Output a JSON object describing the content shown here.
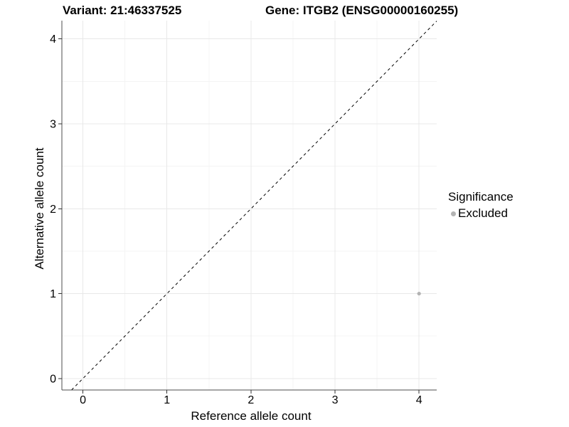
{
  "titles": {
    "variant": "Variant: 21:46337525",
    "gene": "Gene: ITGB2 (ENSG00000160255)"
  },
  "chart_data": {
    "type": "scatter",
    "xlabel": "Reference allele count",
    "ylabel": "Alternative allele count",
    "x_ticks": [
      0,
      1,
      2,
      3,
      4
    ],
    "y_ticks": [
      0,
      1,
      2,
      3,
      4
    ],
    "x_minor_ticks": [
      0.5,
      1.5,
      2.5,
      3.5
    ],
    "y_minor_ticks": [
      0.5,
      1.5,
      2.5,
      3.5
    ],
    "xlim": [
      -0.25,
      4.21
    ],
    "ylim": [
      -0.135,
      4.215
    ],
    "grid": true,
    "points": [
      {
        "x": 4,
        "y": 1,
        "series": "Excluded"
      }
    ],
    "reference_line": {
      "type": "identity",
      "slope": 1,
      "intercept": 0,
      "style": "dashed"
    },
    "legend": {
      "title": "Significance",
      "position": "right",
      "items": [
        {
          "label": "Excluded",
          "color": "#b3b3b3"
        }
      ]
    },
    "colors": {
      "point": "#b3b3b3",
      "grid_major": "#e8e8e8",
      "grid_minor": "#f4f4f4",
      "axis_line": "#4d4d4d",
      "tick_mark": "#333333",
      "dashed_line": "#000000",
      "text": "#000000"
    }
  }
}
